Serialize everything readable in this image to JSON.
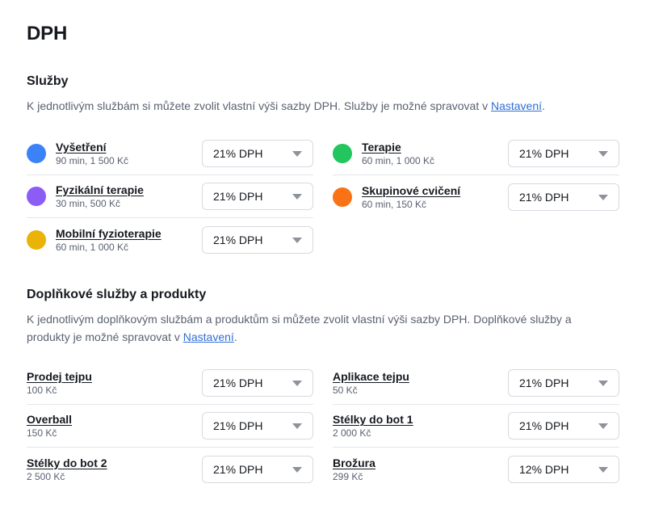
{
  "page": {
    "title": "DPH"
  },
  "services": {
    "title": "Služby",
    "description": "K jednotlivým službám si můžete zvolit vlastní výši sazby DPH. Služby je možné spravovat v ",
    "link": "Nastavení",
    "description_end": ".",
    "left": [
      {
        "name": "Vyšetření",
        "meta": "90 min, 1 500 Kč",
        "vat": "21% DPH",
        "color": "#3b82f6"
      },
      {
        "name": "Fyzikální terapie",
        "meta": "30 min, 500 Kč",
        "vat": "21% DPH",
        "color": "#8b5cf6"
      },
      {
        "name": "Mobilní fyzioterapie",
        "meta": "60 min, 1 000 Kč",
        "vat": "21% DPH",
        "color": "#eab308"
      }
    ],
    "right": [
      {
        "name": "Terapie",
        "meta": "60 min, 1 000 Kč",
        "vat": "21% DPH",
        "color": "#22c55e"
      },
      {
        "name": "Skupinové cvičení",
        "meta": "60 min, 150 Kč",
        "vat": "21% DPH",
        "color": "#f97316"
      }
    ]
  },
  "products": {
    "title": "Doplňkové služby a produkty",
    "description": "K jednotlivým doplňkovým službám a produktům si můžete zvolit vlastní výši sazby DPH. Doplňkové služby a produkty je možné spravovat v ",
    "link": "Nastavení",
    "description_end": ".",
    "left": [
      {
        "name": "Prodej tejpu",
        "meta": "100 Kč",
        "vat": "21% DPH"
      },
      {
        "name": "Overball",
        "meta": "150 Kč",
        "vat": "21% DPH"
      },
      {
        "name": "Stélky do bot 2",
        "meta": "2 500 Kč",
        "vat": "21% DPH"
      }
    ],
    "right": [
      {
        "name": "Aplikace tejpu",
        "meta": "50 Kč",
        "vat": "21% DPH"
      },
      {
        "name": "Stélky do bot 1",
        "meta": "2 000 Kč",
        "vat": "21% DPH"
      },
      {
        "name": "Brožura",
        "meta": "299 Kč",
        "vat": "12% DPH"
      }
    ]
  }
}
